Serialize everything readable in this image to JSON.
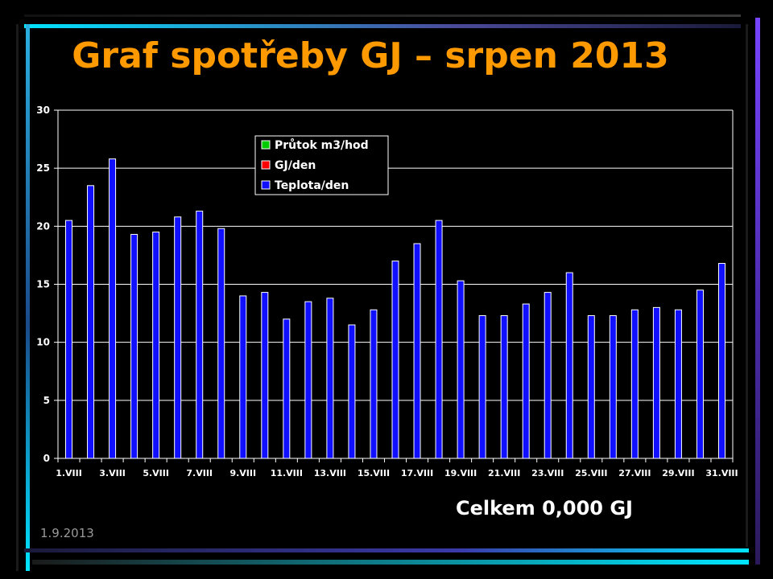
{
  "slide": {
    "title": "Graf spotřeby GJ – srpen 2013",
    "total": "Celkem 0,000 GJ",
    "date": "1.9.2013"
  },
  "colors": {
    "title": "#ff9900",
    "bar": "#1010ff",
    "legend_green": "#00cc00",
    "legend_red": "#ff0000",
    "legend_blue": "#1010ff"
  },
  "chart_data": {
    "type": "bar",
    "title": "",
    "xlabel": "",
    "ylabel": "",
    "ylim": [
      0,
      30
    ],
    "yticks": [
      "0",
      "5",
      "10",
      "15",
      "20",
      "25",
      "30"
    ],
    "grid": true,
    "legend_position": "top-center",
    "categories": [
      "1.VIII",
      "2.VIII",
      "3.VIII",
      "4.VIII",
      "5.VIII",
      "6.VIII",
      "7.VIII",
      "8.VIII",
      "9.VIII",
      "10.VIII",
      "11.VIII",
      "12.VIII",
      "13.VIII",
      "14.VIII",
      "15.VIII",
      "16.VIII",
      "17.VIII",
      "18.VIII",
      "19.VIII",
      "20.VIII",
      "21.VIII",
      "22.VIII",
      "23.VIII",
      "24.VIII",
      "25.VIII",
      "26.VIII",
      "27.VIII",
      "28.VIII",
      "29.VIII",
      "30.VIII",
      "31.VIII"
    ],
    "xtick_labels": [
      "1.VIII",
      "",
      "3.VIII",
      "",
      "5.VIII",
      "",
      "7.VIII",
      "",
      "9.VIII",
      "",
      "11.VIII",
      "",
      "13.VIII",
      "",
      "15.VIII",
      "",
      "17.VIII",
      "",
      "19.VIII",
      "",
      "21.VIII",
      "",
      "23.VIII",
      "",
      "25.VIII",
      "",
      "27.VIII",
      "",
      "29.VIII",
      "",
      "31.VIII"
    ],
    "series": [
      {
        "name": "Průtok m3/hod",
        "values": [
          0,
          0,
          0,
          0,
          0,
          0,
          0,
          0,
          0,
          0,
          0,
          0,
          0,
          0,
          0,
          0,
          0,
          0,
          0,
          0,
          0,
          0,
          0,
          0,
          0,
          0,
          0,
          0,
          0,
          0,
          0
        ]
      },
      {
        "name": "GJ/den",
        "values": [
          0,
          0,
          0,
          0,
          0,
          0,
          0,
          0,
          0,
          0,
          0,
          0,
          0,
          0,
          0,
          0,
          0,
          0,
          0,
          0,
          0,
          0,
          0,
          0,
          0,
          0,
          0,
          0,
          0,
          0,
          0
        ]
      },
      {
        "name": "Teplota/den",
        "values": [
          20.5,
          23.5,
          25.8,
          19.3,
          19.5,
          20.8,
          21.3,
          19.8,
          14.0,
          14.3,
          12.0,
          13.5,
          13.8,
          11.5,
          12.8,
          17.0,
          18.5,
          20.5,
          15.3,
          12.3,
          12.3,
          13.3,
          14.3,
          16.0,
          12.3,
          12.3,
          12.8,
          13.0,
          12.8,
          14.5,
          16.8
        ]
      }
    ]
  }
}
